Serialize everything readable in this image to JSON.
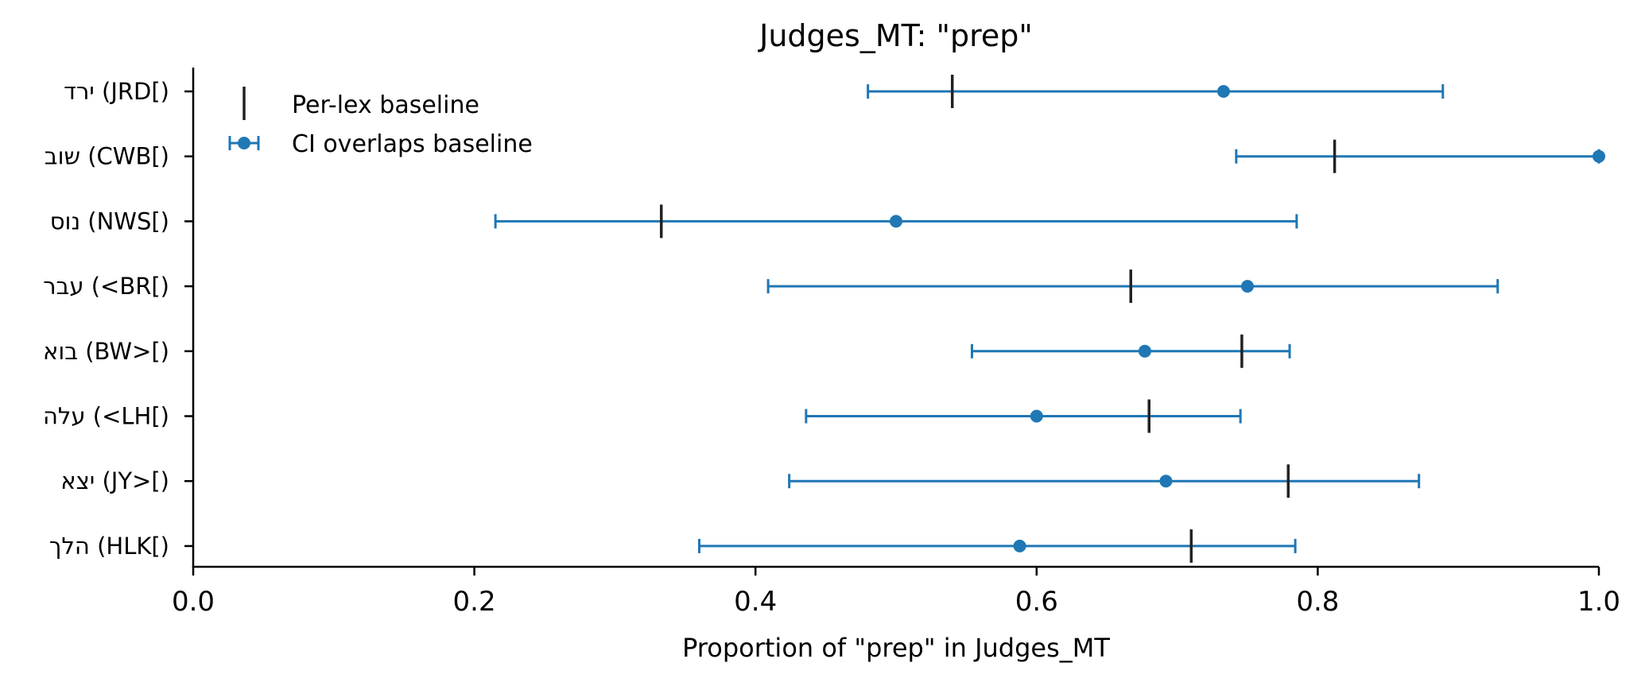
{
  "chart_data": {
    "type": "scatter",
    "title": "Judges_MT: \"prep\"",
    "xlabel": "Proportion of \"prep\" in Judges_MT",
    "ylabel": "",
    "xlim": [
      0.0,
      1.0
    ],
    "x_ticks": [
      "0.0",
      "0.2",
      "0.4",
      "0.6",
      "0.8",
      "1.0"
    ],
    "x_tick_values": [
      0.0,
      0.2,
      0.4,
      0.6,
      0.8,
      1.0
    ],
    "grid": false,
    "legend_position": "top-left",
    "legend": [
      {
        "label": "Per-lex baseline",
        "marker": "vertical-line"
      },
      {
        "label": "CI overlaps baseline",
        "marker": "point-with-error-bar"
      }
    ],
    "colors": {
      "point": "#1f77b4",
      "baseline": "#222222",
      "axis": "#000000"
    },
    "categories": [
      "ירד (JRD[)",
      "שוב (CWB[)",
      "נוס (NWS[)",
      "עבר (<BR[)",
      "בוא (BW>[)",
      "עלה (<LH[)",
      "יצא (JY>[)",
      "הלך (HLK[)"
    ],
    "series": [
      {
        "name": "CI overlaps baseline",
        "values": [
          0.733,
          1.0,
          0.5,
          0.75,
          0.677,
          0.6,
          0.692,
          0.588
        ],
        "ci_low": [
          0.48,
          0.742,
          0.215,
          0.409,
          0.554,
          0.436,
          0.424,
          0.36
        ],
        "ci_high": [
          0.889,
          1.0,
          0.785,
          0.928,
          0.78,
          0.745,
          0.872,
          0.784
        ]
      },
      {
        "name": "Per-lex baseline",
        "values": [
          0.54,
          0.812,
          0.333,
          0.667,
          0.746,
          0.68,
          0.779,
          0.71
        ]
      }
    ]
  }
}
